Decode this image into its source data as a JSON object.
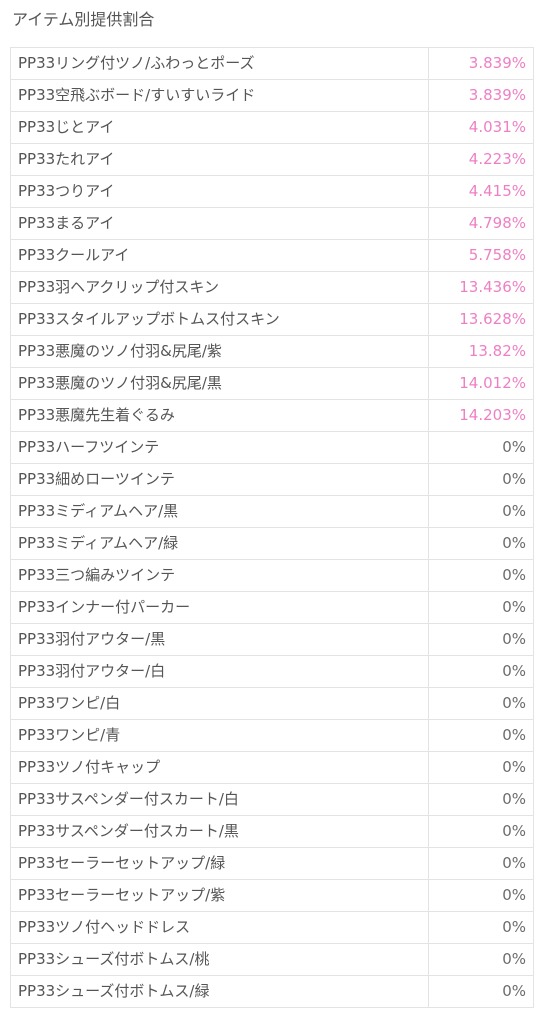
{
  "section": {
    "title": "アイテム別提供割合"
  },
  "colors": {
    "featured_rate": "#ef7fc4",
    "normal_rate": "#6c6c6c",
    "text": "#555555",
    "border": "#e3e3e3"
  },
  "items": [
    {
      "name": "PP33リング付ツノ/ふわっとポーズ",
      "rate": "3.839%",
      "featured": true
    },
    {
      "name": "PP33空飛ぶボード/すいすいライド",
      "rate": "3.839%",
      "featured": true
    },
    {
      "name": "PP33じとアイ",
      "rate": "4.031%",
      "featured": true
    },
    {
      "name": "PP33たれアイ",
      "rate": "4.223%",
      "featured": true
    },
    {
      "name": "PP33つりアイ",
      "rate": "4.415%",
      "featured": true
    },
    {
      "name": "PP33まるアイ",
      "rate": "4.798%",
      "featured": true
    },
    {
      "name": "PP33クールアイ",
      "rate": "5.758%",
      "featured": true
    },
    {
      "name": "PP33羽ヘアクリップ付スキン",
      "rate": "13.436%",
      "featured": true
    },
    {
      "name": "PP33スタイルアップボトムス付スキン",
      "rate": "13.628%",
      "featured": true
    },
    {
      "name": "PP33悪魔のツノ付羽&尻尾/紫",
      "rate": "13.82%",
      "featured": true
    },
    {
      "name": "PP33悪魔のツノ付羽&尻尾/黒",
      "rate": "14.012%",
      "featured": true
    },
    {
      "name": "PP33悪魔先生着ぐるみ",
      "rate": "14.203%",
      "featured": true
    },
    {
      "name": "PP33ハーフツインテ",
      "rate": "0%",
      "featured": false
    },
    {
      "name": "PP33細めローツインテ",
      "rate": "0%",
      "featured": false
    },
    {
      "name": "PP33ミディアムヘア/黒",
      "rate": "0%",
      "featured": false
    },
    {
      "name": "PP33ミディアムヘア/緑",
      "rate": "0%",
      "featured": false
    },
    {
      "name": "PP33三つ編みツインテ",
      "rate": "0%",
      "featured": false
    },
    {
      "name": "PP33インナー付パーカー",
      "rate": "0%",
      "featured": false
    },
    {
      "name": "PP33羽付アウター/黒",
      "rate": "0%",
      "featured": false
    },
    {
      "name": "PP33羽付アウター/白",
      "rate": "0%",
      "featured": false
    },
    {
      "name": "PP33ワンピ/白",
      "rate": "0%",
      "featured": false
    },
    {
      "name": "PP33ワンピ/青",
      "rate": "0%",
      "featured": false
    },
    {
      "name": "PP33ツノ付キャップ",
      "rate": "0%",
      "featured": false
    },
    {
      "name": "PP33サスペンダー付スカート/白",
      "rate": "0%",
      "featured": false
    },
    {
      "name": "PP33サスペンダー付スカート/黒",
      "rate": "0%",
      "featured": false
    },
    {
      "name": "PP33セーラーセットアップ/緑",
      "rate": "0%",
      "featured": false
    },
    {
      "name": "PP33セーラーセットアップ/紫",
      "rate": "0%",
      "featured": false
    },
    {
      "name": "PP33ツノ付ヘッドドレス",
      "rate": "0%",
      "featured": false
    },
    {
      "name": "PP33シューズ付ボトムス/桃",
      "rate": "0%",
      "featured": false
    },
    {
      "name": "PP33シューズ付ボトムス/緑",
      "rate": "0%",
      "featured": false
    }
  ]
}
